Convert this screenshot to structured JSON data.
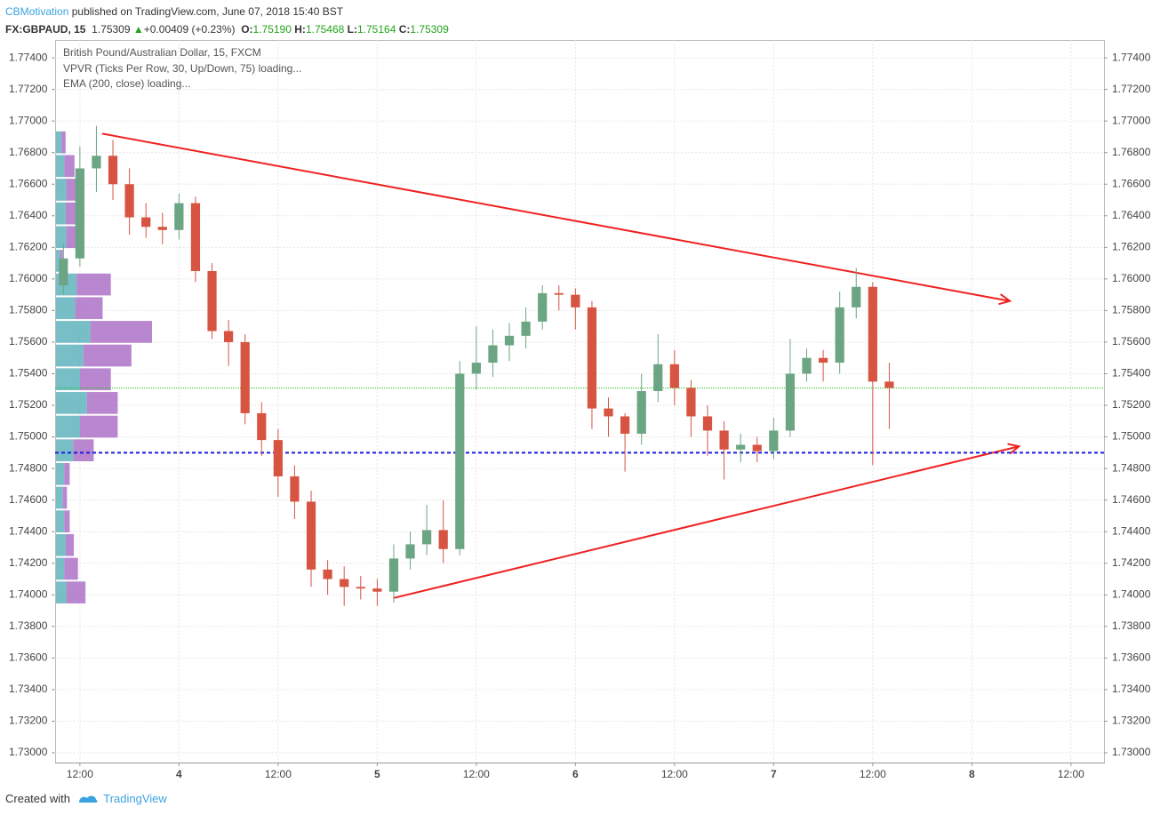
{
  "header": {
    "author": "CBMotivation",
    "published": "published on TradingView.com, June 07, 2018 15:40 BST"
  },
  "quote": {
    "symbol": "FX:GBPAUD, 15",
    "last": 1.75309,
    "arrow": "▲",
    "change": "+0.00409 (+0.23%)",
    "open_label": "O:",
    "open": "1.75190",
    "high_label": "H:",
    "high": "1.75468",
    "low_label": "L:",
    "low": "1.75164",
    "close_label": "C:",
    "close": "1.75309"
  },
  "legend": {
    "title": "British Pound/Australian Dollar, 15, FXCM",
    "vpvr": "VPVR (Ticks Per Row, 30, Up/Down, 75) loading...",
    "ema": "EMA (200, close) loading..."
  },
  "footer": {
    "created": "Created with",
    "brand": "TradingView"
  },
  "chart_data": {
    "type": "candlestick",
    "x": [
      10,
      12,
      14,
      16,
      18,
      20,
      22,
      24,
      26,
      28,
      30,
      32,
      34,
      36,
      38,
      40,
      42,
      44,
      46,
      48,
      50,
      52,
      54,
      56,
      58,
      60,
      62,
      64,
      66,
      68,
      70,
      72,
      74,
      76,
      78,
      80,
      82,
      84,
      86,
      88,
      90,
      92,
      94,
      96,
      98,
      100,
      102,
      104,
      106,
      108,
      110
    ],
    "open": [
      1.7596,
      1.7613,
      1.767,
      1.7678,
      1.766,
      1.7639,
      1.7633,
      1.7631,
      1.7648,
      1.7605,
      1.7567,
      1.756,
      1.7515,
      1.7498,
      1.7475,
      1.7459,
      1.7416,
      1.741,
      1.7405,
      1.7404,
      1.7402,
      1.7423,
      1.7432,
      1.7441,
      1.7429,
      1.754,
      1.7547,
      1.7558,
      1.7564,
      1.7573,
      1.7591,
      1.759,
      1.7582,
      1.7518,
      1.7513,
      1.7502,
      1.7529,
      1.7546,
      1.7531,
      1.7513,
      1.7504,
      1.7492,
      1.7495,
      1.7491,
      1.7504,
      1.754,
      1.755,
      1.7547,
      1.7582,
      1.7595,
      1.7535
    ],
    "high": [
      1.7622,
      1.7684,
      1.7697,
      1.7688,
      1.767,
      1.7648,
      1.7642,
      1.7654,
      1.7652,
      1.761,
      1.7574,
      1.7565,
      1.7522,
      1.7505,
      1.7482,
      1.7466,
      1.7422,
      1.7418,
      1.7412,
      1.741,
      1.7432,
      1.744,
      1.7457,
      1.746,
      1.7548,
      1.757,
      1.7568,
      1.7572,
      1.7582,
      1.7596,
      1.7596,
      1.7594,
      1.7586,
      1.7525,
      1.7515,
      1.754,
      1.7565,
      1.7555,
      1.7536,
      1.752,
      1.751,
      1.7502,
      1.75,
      1.7512,
      1.7562,
      1.7556,
      1.7555,
      1.7592,
      1.7607,
      1.7598,
      1.7547
    ],
    "low": [
      1.759,
      1.7608,
      1.7655,
      1.765,
      1.7628,
      1.7626,
      1.7622,
      1.7625,
      1.7598,
      1.7562,
      1.7545,
      1.7508,
      1.7488,
      1.7462,
      1.7448,
      1.7405,
      1.74,
      1.7393,
      1.7397,
      1.7393,
      1.7395,
      1.7416,
      1.7425,
      1.742,
      1.7425,
      1.753,
      1.7538,
      1.7548,
      1.7556,
      1.7568,
      1.758,
      1.7568,
      1.7505,
      1.75,
      1.7478,
      1.7495,
      1.7522,
      1.752,
      1.75,
      1.7488,
      1.7473,
      1.7484,
      1.7484,
      1.7486,
      1.75,
      1.7535,
      1.7535,
      1.754,
      1.7575,
      1.7482,
      1.7505
    ],
    "close": [
      1.7613,
      1.767,
      1.7678,
      1.766,
      1.7639,
      1.7633,
      1.7631,
      1.7648,
      1.7605,
      1.7567,
      1.756,
      1.7515,
      1.7498,
      1.7475,
      1.7459,
      1.7416,
      1.741,
      1.7405,
      1.7404,
      1.7402,
      1.7423,
      1.7432,
      1.7441,
      1.7429,
      1.754,
      1.7547,
      1.7558,
      1.7564,
      1.7573,
      1.7591,
      1.759,
      1.7582,
      1.7518,
      1.7513,
      1.7502,
      1.7529,
      1.7546,
      1.7531,
      1.7513,
      1.7504,
      1.7492,
      1.7495,
      1.7491,
      1.7504,
      1.754,
      1.755,
      1.7547,
      1.7582,
      1.7595,
      1.7535,
      1.7531
    ],
    "up_color": "#6ba583",
    "down_color": "#d75442",
    "xlim": [
      9,
      136
    ],
    "xticks": [
      {
        "value": 12,
        "label": "12:00"
      },
      {
        "value": 24,
        "label": "4"
      },
      {
        "value": 36,
        "label": "12:00"
      },
      {
        "value": 48,
        "label": "5"
      },
      {
        "value": 60,
        "label": "12:00"
      },
      {
        "value": 72,
        "label": "6"
      },
      {
        "value": 84,
        "label": "12:00"
      },
      {
        "value": 96,
        "label": "7"
      },
      {
        "value": 108,
        "label": "12:00"
      },
      {
        "value": 120,
        "label": "8"
      },
      {
        "value": 132,
        "label": "12:00"
      }
    ],
    "ylim": [
      1.72938,
      1.77513
    ],
    "yticks": [
      {
        "value": 1.73,
        "label": "1.73000"
      },
      {
        "value": 1.732,
        "label": "1.73200"
      },
      {
        "value": 1.734,
        "label": "1.73400"
      },
      {
        "value": 1.736,
        "label": "1.73600"
      },
      {
        "value": 1.738,
        "label": "1.73800"
      },
      {
        "value": 1.74,
        "label": "1.74000"
      },
      {
        "value": 1.742,
        "label": "1.74200"
      },
      {
        "value": 1.744,
        "label": "1.74400"
      },
      {
        "value": 1.746,
        "label": "1.74600"
      },
      {
        "value": 1.748,
        "label": "1.74800"
      },
      {
        "value": 1.75,
        "label": "1.75000"
      },
      {
        "value": 1.752,
        "label": "1.75200"
      },
      {
        "value": 1.754,
        "label": "1.75400"
      },
      {
        "value": 1.756,
        "label": "1.75600"
      },
      {
        "value": 1.758,
        "label": "1.75800"
      },
      {
        "value": 1.76,
        "label": "1.76000"
      },
      {
        "value": 1.762,
        "label": "1.76200"
      },
      {
        "value": 1.764,
        "label": "1.76400"
      },
      {
        "value": 1.766,
        "label": "1.76600"
      },
      {
        "value": 1.768,
        "label": "1.76800"
      },
      {
        "value": 1.77,
        "label": "1.77000"
      },
      {
        "value": 1.772,
        "label": "1.77200"
      },
      {
        "value": 1.774,
        "label": "1.77400"
      }
    ],
    "grid": true,
    "volume_profile": {
      "bins": [
        1.7394,
        1.7409,
        1.7424,
        1.7439,
        1.7454,
        1.7469,
        1.7484,
        1.7499,
        1.7514,
        1.7529,
        1.7544,
        1.7559,
        1.7574,
        1.7589,
        1.7604,
        1.7619,
        1.7634,
        1.7649,
        1.7664,
        1.7679,
        1.7694
      ],
      "up": [
        15,
        12,
        14,
        12,
        10,
        12,
        25,
        35,
        45,
        35,
        40,
        50,
        28,
        30,
        6,
        15,
        14,
        15,
        12,
        8
      ],
      "down": [
        28,
        20,
        12,
        8,
        6,
        8,
        30,
        55,
        45,
        45,
        70,
        90,
        40,
        50,
        4,
        25,
        15,
        20,
        15,
        6
      ],
      "up_color": "#4ba8b4",
      "down_color": "#a15fbf"
    },
    "last_price_color": "#22c31a",
    "drawings": [
      {
        "type": "arrow",
        "color": "#f02020",
        "x": [
          14.7,
          124.6
        ],
        "y": [
          1.7692,
          1.7586
        ]
      },
      {
        "type": "arrow",
        "color": "#f02020",
        "x": [
          50.0,
          125.7
        ],
        "y": [
          1.7398,
          1.7494
        ]
      },
      {
        "type": "hline",
        "color": "#1a1ee0",
        "y": 1.749
      }
    ]
  }
}
